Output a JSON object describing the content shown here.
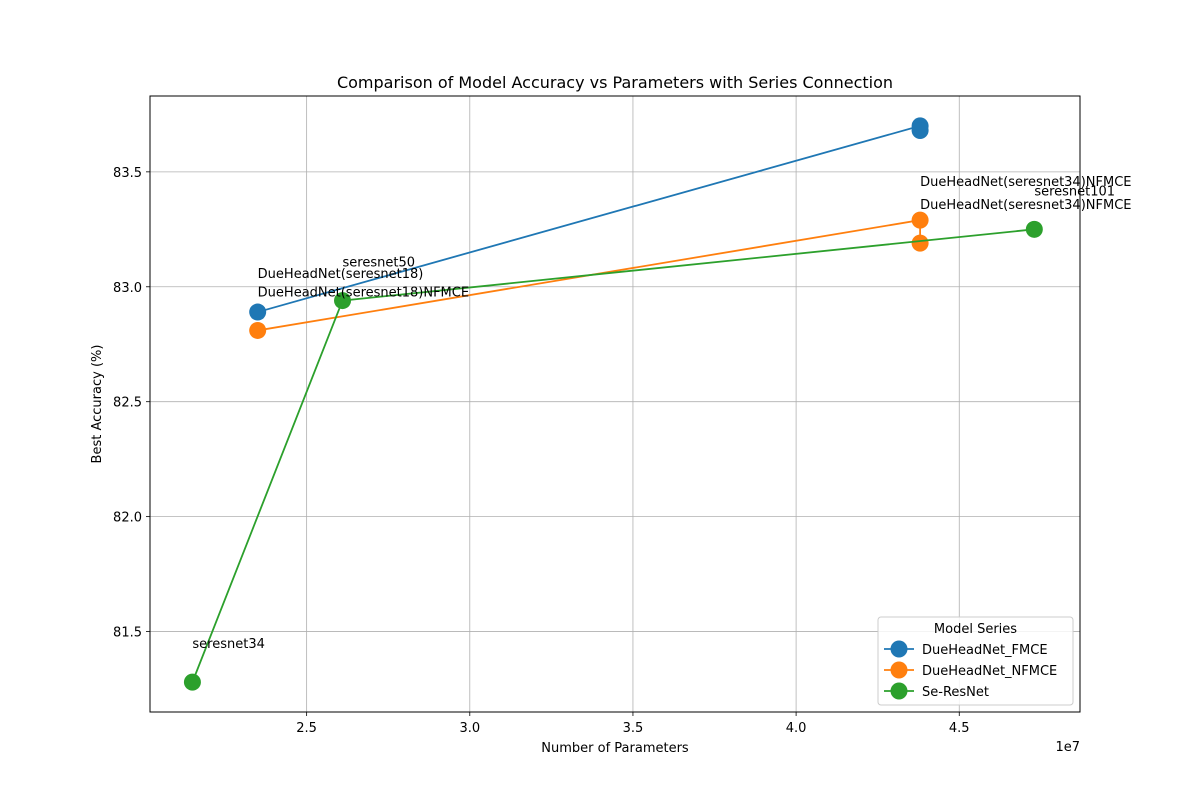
{
  "chart_data": {
    "type": "line",
    "title": "Comparison of Model Accuracy vs Parameters with Series Connection",
    "xlabel": "Number of Parameters",
    "ylabel": "Best Accuracy (%)",
    "x_offset_label": "1e7",
    "x_scale": 10000000,
    "xlim": [
      20200000,
      48700000
    ],
    "ylim": [
      81.15,
      83.83
    ],
    "x_ticks": [
      2.5,
      3.0,
      3.5,
      4.0,
      4.5
    ],
    "x_tick_labels": [
      "2.5",
      "3.0",
      "3.5",
      "4.0",
      "4.5"
    ],
    "y_ticks": [
      81.5,
      82.0,
      82.5,
      83.0,
      83.5
    ],
    "y_tick_labels": [
      "81.5",
      "82.0",
      "82.5",
      "83.0",
      "83.5"
    ],
    "grid": true,
    "legend": {
      "title": "Model Series",
      "placement": "bottom-right"
    },
    "series": [
      {
        "name": "DueHeadNet_FMCE",
        "color": "#1f77b4",
        "points": [
          {
            "x": 23500000,
            "y": 82.89,
            "label": "DueHeadNet(seresnet18)"
          },
          {
            "x": 43800000,
            "y": 83.7,
            "label": ""
          },
          {
            "x": 43800000,
            "y": 83.68,
            "label": ""
          }
        ]
      },
      {
        "name": "DueHeadNet_NFMCE",
        "color": "#ff7f0e",
        "points": [
          {
            "x": 23500000,
            "y": 82.81,
            "label": "DueHeadNet(seresnet18)NFMCE"
          },
          {
            "x": 43800000,
            "y": 83.29,
            "label": "DueHeadNet(seresnet34)NFMCE"
          },
          {
            "x": 43800000,
            "y": 83.19,
            "label": "DueHeadNet(seresnet34)NFMCE"
          }
        ]
      },
      {
        "name": "Se-ResNet",
        "color": "#2ca02c",
        "points": [
          {
            "x": 21500000,
            "y": 81.28,
            "label": "seresnet34"
          },
          {
            "x": 26100000,
            "y": 82.94,
            "label": "seresnet50"
          },
          {
            "x": 47300000,
            "y": 83.25,
            "label": "seresnet101"
          }
        ]
      }
    ]
  }
}
